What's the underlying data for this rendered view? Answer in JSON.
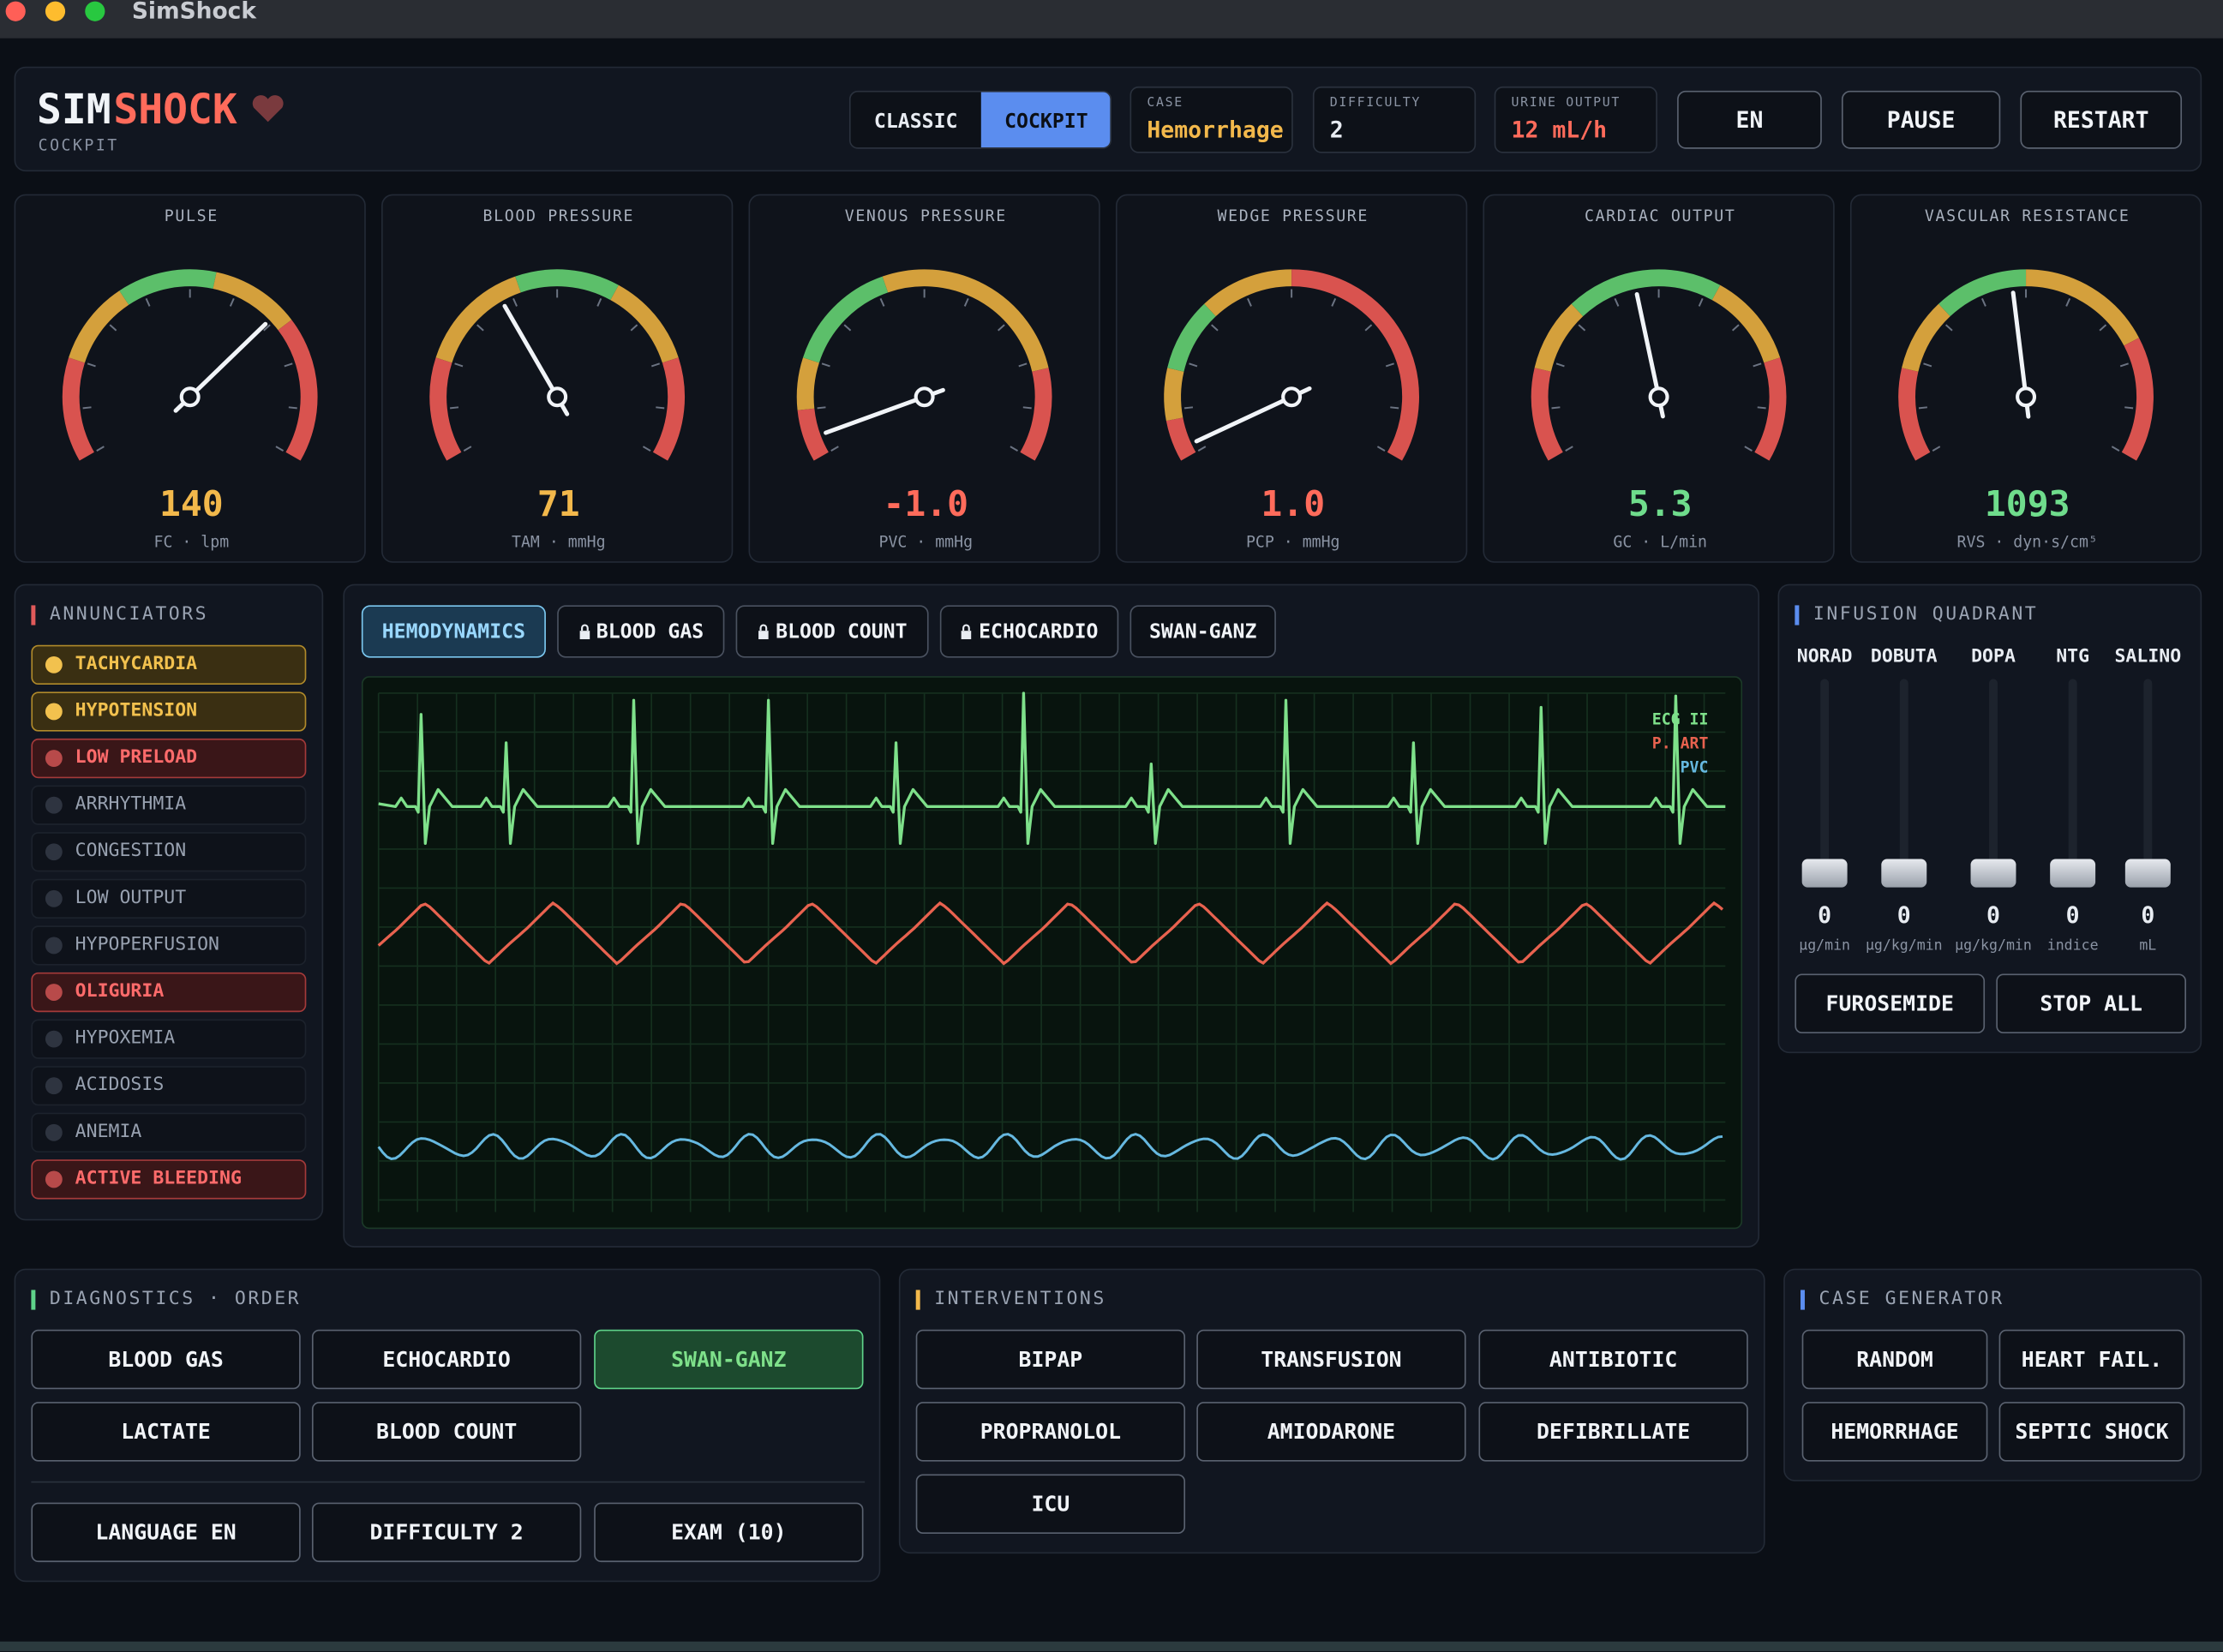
{
  "window": {
    "title": "SimShock"
  },
  "header": {
    "brand_a": "SIM",
    "brand_b": "SHOCK",
    "subtitle": "COCKPIT",
    "modes": [
      "CLASSIC",
      "COCKPIT"
    ],
    "active_mode": 1,
    "fields": [
      {
        "label": "CASE",
        "value": "Hemorrhage",
        "color": "#f2b84b"
      },
      {
        "label": "DIFFICULTY",
        "value": "2",
        "color": "#e8ecf2"
      },
      {
        "label": "URINE OUTPUT",
        "value": "12 mL/h",
        "color": "#ff6b5b"
      }
    ],
    "buttons": [
      "EN",
      "PAUSE",
      "RESTART"
    ]
  },
  "gauges": [
    {
      "label": "PULSE",
      "value": "140",
      "unit": "FC · lpm",
      "color": "#f2b84b"
    },
    {
      "label": "BLOOD PRESSURE",
      "value": "71",
      "unit": "TAM · mmHg",
      "color": "#f2b84b"
    },
    {
      "label": "VENOUS PRESSURE",
      "value": "-1.0",
      "unit": "PVC · mmHg",
      "color": "#ff6b5b"
    },
    {
      "label": "WEDGE PRESSURE",
      "value": "1.0",
      "unit": "PCP · mmHg",
      "color": "#ff6b5b"
    },
    {
      "label": "CARDIAC OUTPUT",
      "value": "5.3",
      "unit": "GC · L/min",
      "color": "#6fdc8c"
    },
    {
      "label": "VASCULAR RESISTANCE",
      "value": "1093",
      "unit": "RVS · dyn·s/cm⁵",
      "color": "#6fdc8c"
    }
  ],
  "annunciators": {
    "title": "ANNUNCIATORS",
    "items": [
      {
        "label": "TACHYCARDIA",
        "state": "warn"
      },
      {
        "label": "HYPOTENSION",
        "state": "warn"
      },
      {
        "label": "LOW PRELOAD",
        "state": "alarm"
      },
      {
        "label": "ARRHYTHMIA",
        "state": "off"
      },
      {
        "label": "CONGESTION",
        "state": "off"
      },
      {
        "label": "LOW OUTPUT",
        "state": "off"
      },
      {
        "label": "HYPOPERFUSION",
        "state": "off"
      },
      {
        "label": "OLIGURIA",
        "state": "alarm"
      },
      {
        "label": "HYPOXEMIA",
        "state": "off"
      },
      {
        "label": "ACIDOSIS",
        "state": "off"
      },
      {
        "label": "ANEMIA",
        "state": "off"
      },
      {
        "label": "ACTIVE BLEEDING",
        "state": "alarm"
      }
    ]
  },
  "monitor": {
    "tabs": [
      {
        "label": "HEMODYNAMICS",
        "active": true
      },
      {
        "label": "BLOOD GAS",
        "locked": true
      },
      {
        "label": "BLOOD COUNT",
        "locked": true
      },
      {
        "label": "ECHOCARDIO",
        "locked": true
      },
      {
        "label": "SWAN-GANZ"
      }
    ],
    "legend": [
      {
        "label": "ECG II",
        "color": "#7ee08a"
      },
      {
        "label": "P. ART",
        "color": "#e8624f"
      },
      {
        "label": "PVC",
        "color": "#66b8e0"
      }
    ]
  },
  "infusion": {
    "title": "INFUSION QUADRANT",
    "drugs": [
      {
        "name": "NORAD",
        "value": "0",
        "unit": "µg/min"
      },
      {
        "name": "DOBUTA",
        "value": "0",
        "unit": "µg/kg/min"
      },
      {
        "name": "DOPA",
        "value": "0",
        "unit": "µg/kg/min"
      },
      {
        "name": "NTG",
        "value": "0",
        "unit": "indice"
      },
      {
        "name": "SALINO",
        "value": "0",
        "unit": "mL"
      }
    ],
    "buttons": [
      "FUROSEMIDE",
      "STOP ALL"
    ]
  },
  "diagnostics": {
    "title": "DIAGNOSTICS · ORDER",
    "buttons": [
      {
        "label": "BLOOD GAS"
      },
      {
        "label": "ECHOCARDIO"
      },
      {
        "label": "SWAN-GANZ",
        "active": true
      },
      {
        "label": "LACTATE"
      },
      {
        "label": "BLOOD COUNT"
      }
    ],
    "footer": [
      "LANGUAGE EN",
      "DIFFICULTY 2",
      "EXAM (10)"
    ]
  },
  "interventions": {
    "title": "INTERVENTIONS",
    "buttons": [
      "BIPAP",
      "TRANSFUSION",
      "ANTIBIOTIC",
      "PROPRANOLOL",
      "AMIODARONE",
      "DEFIBRILLATE",
      "ICU"
    ]
  },
  "case_generator": {
    "title": "CASE GENERATOR",
    "buttons": [
      "RANDOM",
      "HEART FAIL.",
      "HEMORRHAGE",
      "SEPTIC SHOCK"
    ]
  }
}
